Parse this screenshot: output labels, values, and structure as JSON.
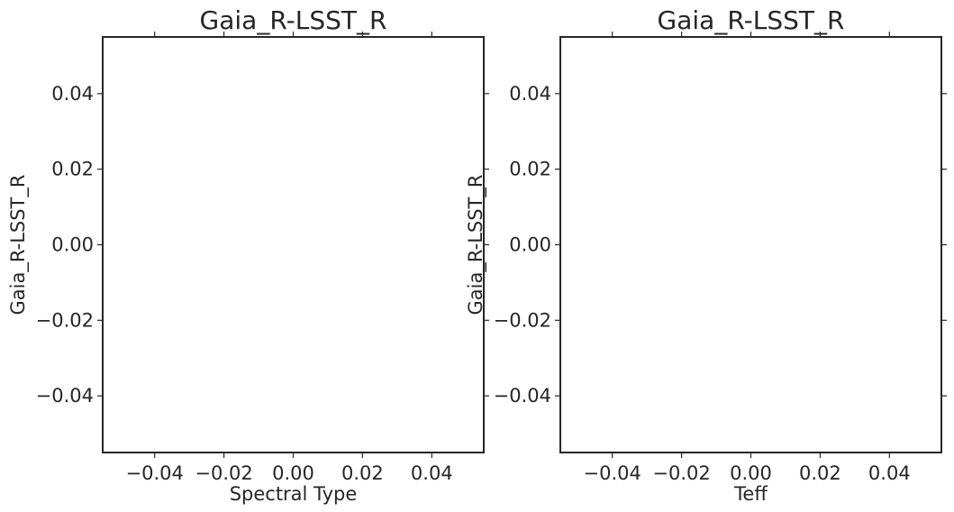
{
  "chart_data": [
    {
      "type": "scatter",
      "title": "Gaia_R-LSST_R",
      "xlabel": "Spectral Type",
      "ylabel": "Gaia_R-LSST_R",
      "xlim": [
        -0.055,
        0.055
      ],
      "ylim": [
        -0.055,
        0.055
      ],
      "xticks": [
        -0.04,
        -0.02,
        0.0,
        0.02,
        0.04
      ],
      "yticks": [
        -0.04,
        -0.02,
        0.0,
        0.02,
        0.04
      ],
      "xtick_labels": [
        "−0.04",
        "−0.02",
        "0.00",
        "0.02",
        "0.04"
      ],
      "ytick_labels": [
        "−0.04",
        "−0.02",
        "0.00",
        "0.02",
        "0.04"
      ],
      "grid": false,
      "series": []
    },
    {
      "type": "scatter",
      "title": "Gaia_R-LSST_R",
      "xlabel": "Teff",
      "ylabel": "Gaia_R-LSST_R",
      "xlim": [
        -0.055,
        0.055
      ],
      "ylim": [
        -0.055,
        0.055
      ],
      "xticks": [
        -0.04,
        -0.02,
        0.0,
        0.02,
        0.04
      ],
      "yticks": [
        -0.04,
        -0.02,
        0.0,
        0.02,
        0.04
      ],
      "xtick_labels": [
        "−0.04",
        "−0.02",
        "0.00",
        "0.02",
        "0.04"
      ],
      "ytick_labels": [
        "−0.04",
        "−0.02",
        "0.00",
        "0.02",
        "0.04"
      ],
      "grid": false,
      "series": []
    }
  ]
}
